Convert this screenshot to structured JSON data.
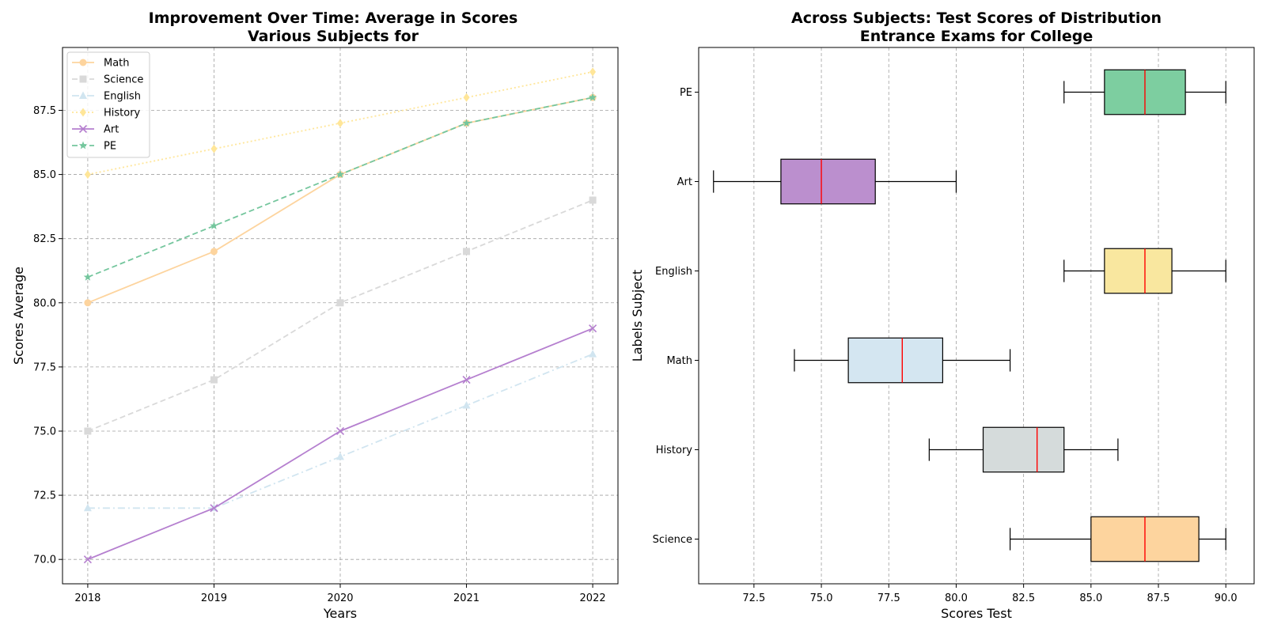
{
  "charts": [
    {
      "title_line1": "Improvement Over Time: Average in Scores",
      "title_line2": "Various Subjects for",
      "xlabel": "Years",
      "ylabel": "Scores Average",
      "x_ticks": [
        "2018",
        "2019",
        "2020",
        "2021",
        "2022"
      ],
      "y_ticks": [
        "70.0",
        "72.5",
        "75.0",
        "77.5",
        "80.0",
        "82.5",
        "85.0",
        "87.5"
      ]
    },
    {
      "title_line1": "Across Subjects: Test Scores of Distribution",
      "title_line2": "Entrance Exams for College",
      "xlabel": "Scores Test",
      "ylabel": "Labels Subject",
      "x_ticks": [
        "72.5",
        "75.0",
        "77.5",
        "80.0",
        "82.5",
        "85.0",
        "87.5",
        "90.0"
      ],
      "y_ticks": [
        "Science",
        "History",
        "Math",
        "English",
        "Art",
        "PE"
      ]
    }
  ],
  "chart_data": [
    {
      "type": "line",
      "x": [
        2018,
        2019,
        2020,
        2021,
        2022
      ],
      "ylim": [
        69.05,
        89.95
      ],
      "xlim": [
        2017.8,
        2022.2
      ],
      "grid": true,
      "legend_position": "top-left",
      "series": [
        {
          "name": "Math",
          "values": [
            80,
            82,
            85,
            87,
            88
          ],
          "color": "#fdd49e",
          "marker": "circle",
          "dash": "solid"
        },
        {
          "name": "Science",
          "values": [
            75,
            77,
            80,
            82,
            84
          ],
          "color": "#d9d9d9",
          "marker": "square",
          "dash": "dashed"
        },
        {
          "name": "English",
          "values": [
            72,
            72,
            74,
            76,
            78
          ],
          "color": "#d1e5f0",
          "marker": "triangle",
          "dash": "dashdot"
        },
        {
          "name": "History",
          "values": [
            85,
            86,
            87,
            88,
            89
          ],
          "color": "#ffe699",
          "marker": "diamond",
          "dash": "dotted"
        },
        {
          "name": "Art",
          "values": [
            70,
            72,
            75,
            77,
            79
          ],
          "color": "#b57fcf",
          "marker": "x",
          "dash": "solid"
        },
        {
          "name": "PE",
          "values": [
            81,
            83,
            85,
            87,
            88
          ],
          "color": "#74c69d",
          "marker": "star",
          "dash": "dashed"
        }
      ]
    },
    {
      "type": "box",
      "orientation": "horizontal",
      "xlim": [
        70.45,
        91.05
      ],
      "grid": true,
      "categories": [
        "Science",
        "History",
        "Math",
        "English",
        "Art",
        "PE"
      ],
      "boxes": [
        {
          "label": "Science",
          "min": 82,
          "q1": 85,
          "median": 87,
          "q3": 89,
          "max": 90,
          "color": "#fdd49e"
        },
        {
          "label": "History",
          "min": 79,
          "q1": 81,
          "median": 83,
          "q3": 84,
          "max": 86,
          "color": "#d5dbdb"
        },
        {
          "label": "Math",
          "min": 74,
          "q1": 76,
          "median": 78,
          "q3": 79.5,
          "max": 82,
          "color": "#d4e6f1"
        },
        {
          "label": "English",
          "min": 84,
          "q1": 85.5,
          "median": 87,
          "q3": 88,
          "max": 90,
          "color": "#f9e79f"
        },
        {
          "label": "Art",
          "min": 71,
          "q1": 73.5,
          "median": 75,
          "q3": 77,
          "max": 80,
          "color": "#bb8fce"
        },
        {
          "label": "PE",
          "min": 84,
          "q1": 85.5,
          "median": 87,
          "q3": 88.5,
          "max": 90,
          "color": "#7dcea0"
        }
      ],
      "median_color": "#ff0000"
    }
  ]
}
